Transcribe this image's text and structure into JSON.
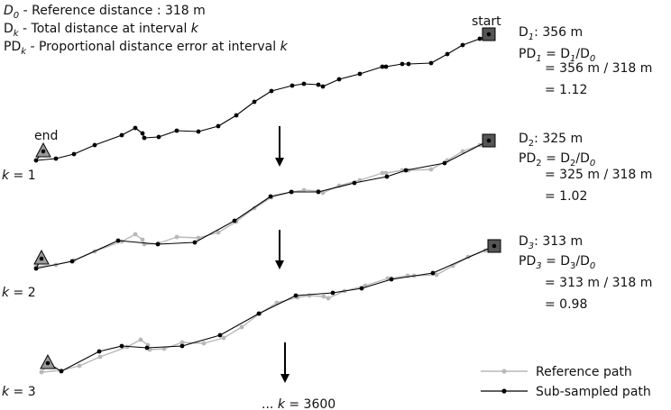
{
  "legend_top": {
    "ref": {
      "sym": "D",
      "sub": "0",
      "text": " - Reference distance : 318 m"
    },
    "total": {
      "sym": "D",
      "sub": "k",
      "text": " - Total distance at interval ",
      "var": "k"
    },
    "pd": {
      "sym": "PD",
      "sub": "k",
      "text": " - Proportional distance error at interval ",
      "var": "k"
    }
  },
  "markers": {
    "start": "start",
    "end": "end"
  },
  "row_labels": [
    {
      "var": "k",
      "text": " = 1"
    },
    {
      "var": "k",
      "text": " = 2"
    },
    {
      "var": "k",
      "text": " = 3"
    }
  ],
  "final_label": {
    "prefix": "... ",
    "var": "k",
    "text": " = 3600"
  },
  "calcs": [
    {
      "d_sub": "1",
      "d_val": ": 356 m",
      "pd_sub": "1",
      "eq": "= ",
      "num_sub": "1",
      "den_sub": "0",
      "ratio": "= 356 m / 318 m",
      "result": "= 1.12"
    },
    {
      "d_sub": "2",
      "d_val": ": 325 m",
      "pd_sub": "2",
      "eq": "= ",
      "num_sub": "2",
      "den_sub": "0",
      "ratio": "= 325 m / 318 m",
      "result": "= 1.02"
    },
    {
      "d_sub": "3",
      "d_val": ": 313 m",
      "pd_sub": "3",
      "eq": "= ",
      "num_sub": "3",
      "den_sub": "0",
      "ratio": "= 313 m / 318 m",
      "result": "= 0.98"
    }
  ],
  "legend_bottom": {
    "reference": "Reference path",
    "subsampled": "Sub-sampled path"
  },
  "colors": {
    "reference": "#b8b8b8",
    "subsampled": "#000000",
    "start_fill": "#555555",
    "end_fill": "#9a9a9a"
  }
}
